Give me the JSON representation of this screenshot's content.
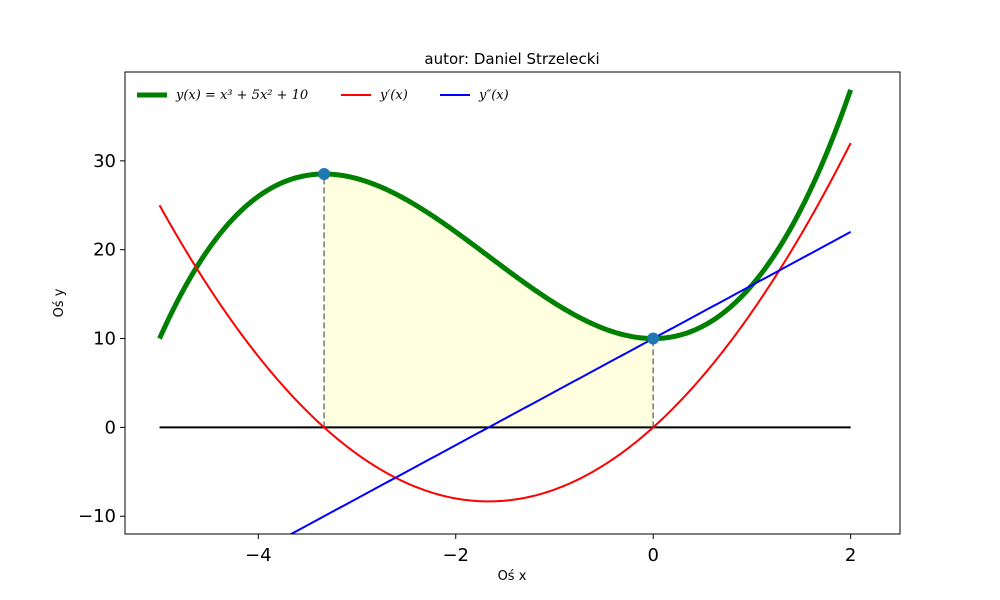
{
  "chart_data": {
    "type": "line",
    "title": "autor: Daniel Strzelecki",
    "xlabel": "Oś x",
    "ylabel": "Oś y",
    "xlim": [
      -5.35,
      2.5
    ],
    "ylim": [
      -12,
      40
    ],
    "xticks": [
      -4,
      -2,
      0,
      2
    ],
    "xtick_labels": [
      "−4",
      "−2",
      "0",
      "2"
    ],
    "yticks": [
      -10,
      0,
      10,
      20,
      30
    ],
    "ytick_labels": [
      "−10",
      "0",
      "10",
      "20",
      "30"
    ],
    "grid": false,
    "legend_position": "top-left",
    "x_domain": [
      -5,
      2
    ],
    "series": [
      {
        "name": "y(x) = x³ + 5x² + 10",
        "color": "#008000",
        "function": "x^3+5x^2+10",
        "line_weight": "thick"
      },
      {
        "name": "y′(x)",
        "color": "#ff0000",
        "function": "3x^2+10x",
        "line_weight": "normal"
      },
      {
        "name": "y″(x)",
        "color": "#0000ff",
        "function": "6x+10",
        "line_weight": "normal"
      }
    ],
    "zero_line": {
      "y": 0,
      "x_range": [
        -5,
        2
      ],
      "color": "#000000"
    },
    "shaded_region": {
      "x_range": [
        -3.3333,
        0
      ],
      "between": "y(x) and 0",
      "color": "#ffffe0"
    },
    "markers": [
      {
        "x": -3.3333,
        "y": 28.52,
        "color": "#1f77b4"
      },
      {
        "x": 0,
        "y": 10,
        "color": "#1f77b4"
      }
    ],
    "dashed_lines": [
      {
        "x": -3.3333,
        "y_from": 0,
        "y_to": 28.52,
        "color": "#808080"
      },
      {
        "x": 0,
        "y_from": 0,
        "y_to": 10,
        "color": "#808080"
      }
    ]
  }
}
